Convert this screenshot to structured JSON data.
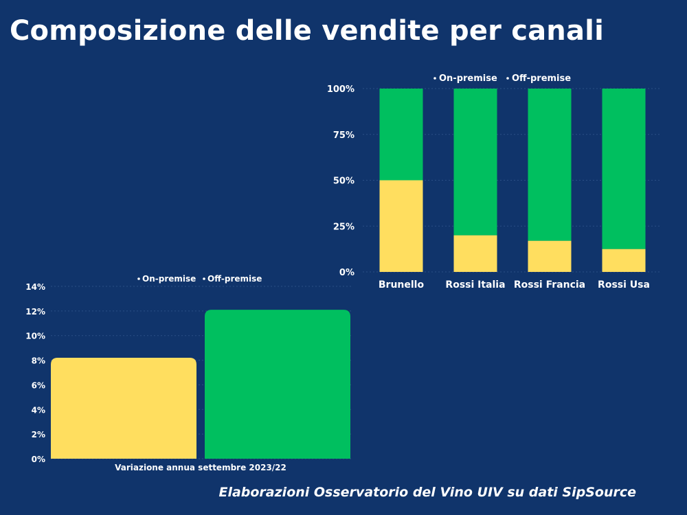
{
  "title": "Composizione delle vendite per canali",
  "footer": "Elaborazioni Osservatorio del Vino UIV su dati SipSource",
  "colors": {
    "background": "#10346b",
    "on_premise": "#ffde5f",
    "off_premise": "#00bf5f",
    "text": "#ffffff"
  },
  "chart_data": [
    {
      "type": "bar",
      "stacked": true,
      "categories": [
        "Brunello",
        "Rossi Italia",
        "Rossi Francia",
        "Rossi Usa"
      ],
      "series": [
        {
          "name": "On-premise",
          "values": [
            50,
            20,
            17,
            12.5
          ]
        },
        {
          "name": "Off-premise",
          "values": [
            50,
            80,
            83,
            87.5
          ]
        }
      ],
      "ylim": [
        0,
        100
      ],
      "yticks": [
        "0%",
        "25%",
        "50%",
        "75%",
        "100%"
      ],
      "ytick_values": [
        0,
        25,
        50,
        75,
        100
      ],
      "legend": "top",
      "grid": true
    },
    {
      "type": "bar",
      "stacked": false,
      "categories": [
        "Variazione annua settembre 2023/22"
      ],
      "series": [
        {
          "name": "On-premise",
          "values": [
            8.2
          ]
        },
        {
          "name": "Off-premise",
          "values": [
            12.1
          ]
        }
      ],
      "ylim": [
        0,
        14
      ],
      "yticks": [
        "0%",
        "2%",
        "4%",
        "6%",
        "8%",
        "10%",
        "12%",
        "14%"
      ],
      "ytick_values": [
        0,
        2,
        4,
        6,
        8,
        10,
        12,
        14
      ],
      "legend": "top",
      "grid": true
    }
  ]
}
